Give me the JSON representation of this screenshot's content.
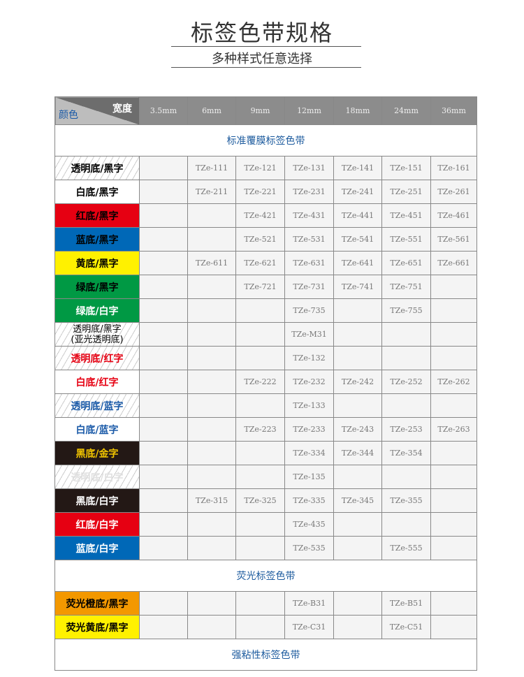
{
  "header": {
    "title": "标签色带规格",
    "subtitle": "多种样式任意选择"
  },
  "table": {
    "corner_width": "宽度",
    "corner_color": "颜色",
    "widths": [
      "3.5mm",
      "6mm",
      "9mm",
      "12mm",
      "18mm",
      "24mm",
      "36mm"
    ],
    "sections": [
      {
        "title": "标准覆膜标签色带",
        "rows": [
          {
            "label": "透明底/黑字",
            "bg": "clear",
            "fg": "#000000",
            "cells": [
              "",
              "TZe-111",
              "TZe-121",
              "TZe-131",
              "TZe-141",
              "TZe-151",
              "TZe-161"
            ]
          },
          {
            "label": "白底/黑字",
            "bg": "#ffffff",
            "fg": "#000000",
            "cells": [
              "",
              "TZe-211",
              "TZe-221",
              "TZe-231",
              "TZe-241",
              "TZe-251",
              "TZe-261"
            ]
          },
          {
            "label": "红底/黑字",
            "bg": "#e60012",
            "fg": "#000000",
            "cells": [
              "",
              "",
              "TZe-421",
              "TZe-431",
              "TZe-441",
              "TZe-451",
              "TZe-461"
            ]
          },
          {
            "label": "蓝底/黑字",
            "bg": "#0068b7",
            "fg": "#000000",
            "cells": [
              "",
              "",
              "TZe-521",
              "TZe-531",
              "TZe-541",
              "TZe-551",
              "TZe-561"
            ]
          },
          {
            "label": "黄底/黑字",
            "bg": "#fff100",
            "fg": "#000000",
            "cells": [
              "",
              "TZe-611",
              "TZe-621",
              "TZe-631",
              "TZe-641",
              "TZe-651",
              "TZe-661"
            ]
          },
          {
            "label": "绿底/黑字",
            "bg": "#009944",
            "fg": "#000000",
            "cells": [
              "",
              "",
              "TZe-721",
              "TZe-731",
              "TZe-741",
              "TZe-751",
              ""
            ]
          },
          {
            "label": "绿底/白字",
            "bg": "#009944",
            "fg": "#ffffff",
            "cells": [
              "",
              "",
              "",
              "TZe-735",
              "",
              "TZe-755",
              ""
            ]
          },
          {
            "label": "透明底/黑字\n(亚光透明底)",
            "bg": "clear",
            "fg": "#000000",
            "cells": [
              "",
              "",
              "",
              "TZe-M31",
              "",
              "",
              ""
            ]
          },
          {
            "label": "透明底/红字",
            "bg": "clear",
            "fg": "#e60012",
            "cells": [
              "",
              "",
              "",
              "TZe-132",
              "",
              "",
              ""
            ]
          },
          {
            "label": "白底/红字",
            "bg": "#ffffff",
            "fg": "#e60012",
            "cells": [
              "",
              "",
              "TZe-222",
              "TZe-232",
              "TZe-242",
              "TZe-252",
              "TZe-262"
            ]
          },
          {
            "label": "透明底/蓝字",
            "bg": "clear",
            "fg": "#1a5aa8",
            "cells": [
              "",
              "",
              "",
              "TZe-133",
              "",
              "",
              ""
            ]
          },
          {
            "label": "白底/蓝字",
            "bg": "#ffffff",
            "fg": "#1a5aa8",
            "cells": [
              "",
              "",
              "TZe-223",
              "TZe-233",
              "TZe-243",
              "TZe-253",
              "TZe-263"
            ]
          },
          {
            "label": "黑底/金字",
            "bg": "#231815",
            "fg": "#f2c500",
            "cells": [
              "",
              "",
              "",
              "TZe-334",
              "TZe-344",
              "TZe-354",
              ""
            ]
          },
          {
            "label": "透明底/白字",
            "bg": "clear",
            "fg": "#e0e0e0",
            "cells": [
              "",
              "",
              "",
              "TZe-135",
              "",
              "",
              ""
            ]
          },
          {
            "label": "黑底/白字",
            "bg": "#231815",
            "fg": "#ffffff",
            "cells": [
              "",
              "TZe-315",
              "TZe-325",
              "TZe-335",
              "TZe-345",
              "TZe-355",
              ""
            ]
          },
          {
            "label": "红底/白字",
            "bg": "#e60012",
            "fg": "#ffffff",
            "cells": [
              "",
              "",
              "",
              "TZe-435",
              "",
              "",
              ""
            ]
          },
          {
            "label": "蓝底/白字",
            "bg": "#0068b7",
            "fg": "#ffffff",
            "cells": [
              "",
              "",
              "",
              "TZe-535",
              "",
              "TZe-555",
              ""
            ]
          }
        ]
      },
      {
        "title": "荧光标签色带",
        "rows": [
          {
            "label": "荧光橙底/黑字",
            "bg": "#f39800",
            "fg": "#000000",
            "cells": [
              "",
              "",
              "",
              "TZe-B31",
              "",
              "TZe-B51",
              ""
            ]
          },
          {
            "label": "荧光黄底/黑字",
            "bg": "#fff100",
            "fg": "#000000",
            "cells": [
              "",
              "",
              "",
              "TZe-C31",
              "",
              "TZe-C51",
              ""
            ]
          }
        ]
      },
      {
        "title": "强粘性标签色带",
        "rows": []
      }
    ]
  }
}
